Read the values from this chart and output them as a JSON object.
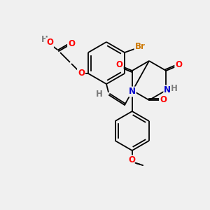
{
  "bg_color": "#f0f0f0",
  "bond_color": "#000000",
  "atom_colors": {
    "O": "#ff0000",
    "N": "#0000cc",
    "H": "#7a7a7a",
    "Br": "#cc7700",
    "C": "#000000"
  },
  "figsize": [
    3.0,
    3.0
  ],
  "dpi": 100
}
